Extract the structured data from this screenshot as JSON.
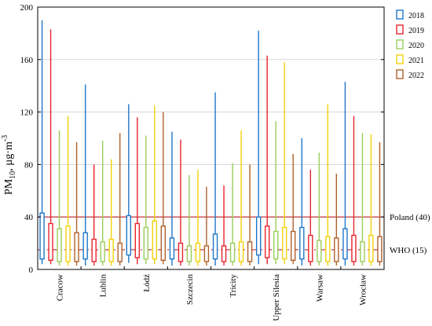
{
  "chart_data": {
    "type": "box",
    "title": "",
    "ylabel_main": "PM",
    "ylabel_sub": "10",
    "ylabel_units": ", µg·m",
    "ylabel_sup": "-3",
    "xlabel": "",
    "ylim": [
      0,
      200
    ],
    "yticks": [
      "0",
      "40",
      "80",
      "120",
      "160",
      "200"
    ],
    "categories": [
      "Cracow",
      "Lublin",
      "Łódź",
      "Szczecin",
      "Tricity",
      "Upper Silesia",
      "Warsaw",
      "Wrocław"
    ],
    "series": [
      {
        "name": "2018",
        "color": "#1f77c8",
        "min": [
          4,
          3,
          5,
          3,
          3,
          4,
          3,
          3
        ],
        "q1": [
          8,
          8,
          11,
          8,
          8,
          11,
          8,
          8
        ],
        "q3": [
          43,
          28,
          41,
          24,
          27,
          40,
          32,
          31
        ],
        "max": [
          190,
          141,
          126,
          105,
          135,
          182,
          100,
          143
        ]
      },
      {
        "name": "2019",
        "color": "#e8242c",
        "min": [
          4,
          3,
          4,
          3,
          3,
          4,
          3,
          3
        ],
        "q1": [
          7,
          6,
          9,
          6,
          6,
          9,
          6,
          6
        ],
        "q3": [
          35,
          23,
          35,
          20,
          18,
          33,
          26,
          26
        ],
        "max": [
          183,
          80,
          116,
          99,
          64,
          163,
          76,
          117
        ]
      },
      {
        "name": "2020",
        "color": "#9acd5a",
        "min": [
          3,
          3,
          4,
          3,
          3,
          4,
          3,
          3
        ],
        "q1": [
          6,
          6,
          8,
          6,
          6,
          8,
          6,
          6
        ],
        "q3": [
          31,
          21,
          32,
          18,
          20,
          29,
          22,
          21
        ],
        "max": [
          106,
          98,
          102,
          72,
          81,
          113,
          89,
          104
        ]
      },
      {
        "name": "2021",
        "color": "#f2d20a",
        "min": [
          3,
          3,
          4,
          3,
          3,
          4,
          3,
          3
        ],
        "q1": [
          6,
          6,
          8,
          6,
          6,
          8,
          6,
          6
        ],
        "q3": [
          33,
          23,
          37,
          20,
          21,
          32,
          25,
          26
        ],
        "max": [
          117,
          84,
          125,
          76,
          106,
          158,
          126,
          103
        ]
      },
      {
        "name": "2022",
        "color": "#b0602a",
        "min": [
          3,
          3,
          4,
          3,
          3,
          4,
          3,
          3
        ],
        "q1": [
          6,
          6,
          7,
          6,
          6,
          7,
          6,
          6
        ],
        "q3": [
          28,
          20,
          33,
          18,
          21,
          29,
          24,
          25
        ],
        "max": [
          97,
          104,
          120,
          63,
          80,
          88,
          73,
          97
        ]
      }
    ],
    "reference_lines": [
      {
        "label": "Poland (40)",
        "value": 40,
        "color": "#c0242c",
        "style": "solid"
      },
      {
        "label": "WHO (15)",
        "value": 15,
        "color": "#c0242c",
        "style": "dashdot"
      }
    ],
    "legend_position": "top-right",
    "grid": true
  }
}
